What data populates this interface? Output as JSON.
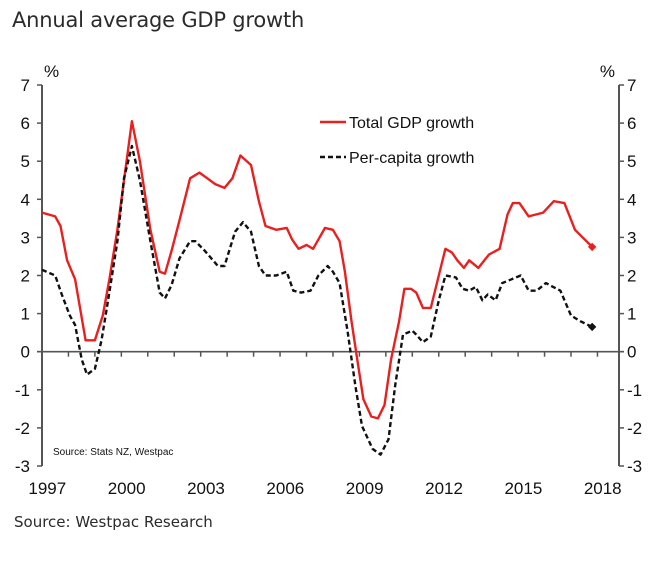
{
  "title": "Annual average GDP growth",
  "footer": "Source: Westpac Research",
  "chart_data": {
    "type": "line",
    "title": "Annual average GDP growth",
    "xlabel": "",
    "ylabel": "%",
    "ylabel_right": "%",
    "ylim": [
      -3,
      7
    ],
    "xlim": [
      1997,
      2018.8
    ],
    "yticks": [
      7,
      6,
      5,
      4,
      3,
      2,
      1,
      0,
      -1,
      -2,
      -3
    ],
    "xticks": [
      "1997",
      "2000",
      "2003",
      "2006",
      "2009",
      "2012",
      "2015",
      "2018"
    ],
    "grid": false,
    "legend_position": "top-center",
    "source_note": "Source: Stats NZ, Westpac",
    "series": [
      {
        "name": "Total GDP growth",
        "color": "#e8201f",
        "style": "solid",
        "end_marker": "diamond",
        "x": [
          1997.0,
          1997.5,
          1997.7,
          1997.95,
          1998.25,
          1998.65,
          1999.0,
          1999.3,
          1999.55,
          1999.85,
          2000.1,
          2000.4,
          2000.7,
          2001.1,
          2001.45,
          2001.65,
          2001.9,
          2002.2,
          2002.6,
          2002.95,
          2003.25,
          2003.55,
          2003.9,
          2004.2,
          2004.5,
          2004.9,
          2005.2,
          2005.45,
          2005.85,
          2006.25,
          2006.45,
          2006.7,
          2007.0,
          2007.25,
          2007.7,
          2008.0,
          2008.25,
          2008.45,
          2008.7,
          2008.95,
          2009.15,
          2009.45,
          2009.7,
          2009.95,
          2010.2,
          2010.5,
          2010.7,
          2010.95,
          2011.15,
          2011.4,
          2011.7,
          2012.0,
          2012.25,
          2012.5,
          2012.7,
          2012.95,
          2013.15,
          2013.5,
          2013.9,
          2014.3,
          2014.6,
          2014.8,
          2015.05,
          2015.4,
          2015.95,
          2016.35,
          2016.75,
          2017.15,
          2017.8
        ],
        "values": [
          3.65,
          3.55,
          3.3,
          2.4,
          1.9,
          0.3,
          0.3,
          0.95,
          1.9,
          3.2,
          4.5,
          6.05,
          5.0,
          3.2,
          2.1,
          2.05,
          2.65,
          3.45,
          4.55,
          4.7,
          4.55,
          4.4,
          4.3,
          4.55,
          5.15,
          4.9,
          3.95,
          3.3,
          3.2,
          3.25,
          2.95,
          2.7,
          2.8,
          2.7,
          3.25,
          3.2,
          2.9,
          2.1,
          0.8,
          -0.35,
          -1.25,
          -1.7,
          -1.75,
          -1.4,
          -0.2,
          0.8,
          1.65,
          1.65,
          1.55,
          1.15,
          1.15,
          2.0,
          2.7,
          2.6,
          2.4,
          2.2,
          2.4,
          2.2,
          2.55,
          2.7,
          3.6,
          3.9,
          3.9,
          3.55,
          3.65,
          3.95,
          3.9,
          3.2,
          2.75
        ]
      },
      {
        "name": "Per-capita growth",
        "color": "#111111",
        "style": "dashed",
        "end_marker": "diamond",
        "x": [
          1997.0,
          1997.5,
          1997.75,
          1998.05,
          1998.25,
          1998.5,
          1998.7,
          1999.0,
          1999.25,
          1999.5,
          1999.85,
          2000.1,
          2000.4,
          2000.7,
          2001.1,
          2001.45,
          2001.65,
          2001.9,
          2002.2,
          2002.6,
          2002.8,
          2003.15,
          2003.65,
          2003.9,
          2004.3,
          2004.6,
          2004.9,
          2005.2,
          2005.45,
          2005.85,
          2006.25,
          2006.5,
          2006.8,
          2007.15,
          2007.45,
          2007.8,
          2008.0,
          2008.25,
          2008.55,
          2008.85,
          2009.1,
          2009.5,
          2009.8,
          2010.1,
          2010.35,
          2010.65,
          2011.0,
          2011.15,
          2011.4,
          2011.7,
          2012.0,
          2012.25,
          2012.65,
          2012.9,
          2013.15,
          2013.4,
          2013.65,
          2013.85,
          2014.15,
          2014.4,
          2014.75,
          2015.1,
          2015.4,
          2015.7,
          2016.05,
          2016.6,
          2017.0,
          2017.35,
          2017.8
        ],
        "values": [
          2.15,
          2.0,
          1.5,
          0.95,
          0.7,
          -0.2,
          -0.6,
          -0.45,
          0.3,
          1.35,
          2.9,
          4.55,
          5.4,
          4.5,
          2.9,
          1.55,
          1.4,
          1.75,
          2.45,
          2.9,
          2.9,
          2.65,
          2.25,
          2.25,
          3.15,
          3.4,
          3.15,
          2.25,
          2.0,
          2.0,
          2.1,
          1.6,
          1.55,
          1.6,
          2.0,
          2.25,
          2.1,
          1.8,
          0.55,
          -0.9,
          -1.95,
          -2.55,
          -2.7,
          -2.3,
          -0.9,
          0.45,
          0.55,
          0.45,
          0.25,
          0.4,
          1.35,
          2.0,
          1.95,
          1.65,
          1.6,
          1.7,
          1.35,
          1.5,
          1.35,
          1.8,
          1.9,
          2.0,
          1.6,
          1.6,
          1.8,
          1.6,
          0.95,
          0.8,
          0.65
        ]
      }
    ]
  }
}
